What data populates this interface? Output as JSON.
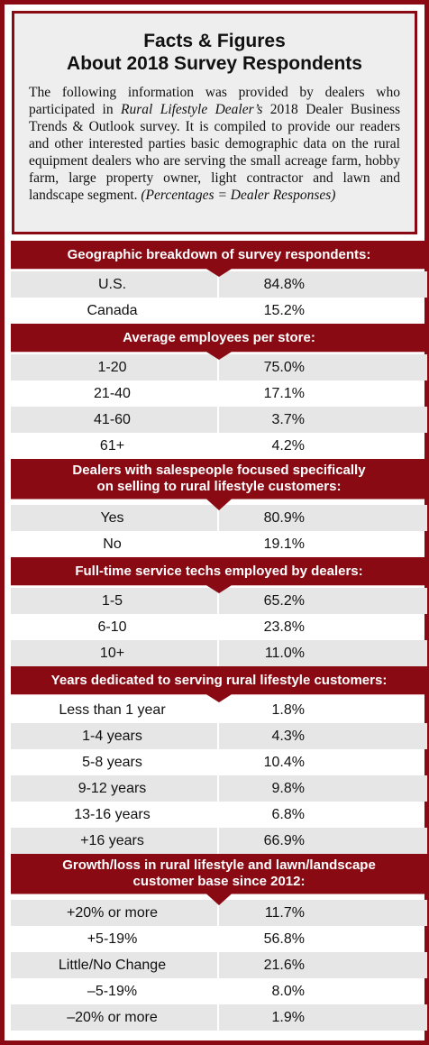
{
  "header": {
    "title_line1": "Facts & Figures",
    "title_line2": "About 2018 Survey Respondents",
    "intro_before": "The following information was provided by dealers who participated in ",
    "intro_italic": "Rural Lifestyle Dealer’s",
    "intro_after": " 2018 Dealer Business Trends & Outlook survey. It is compiled to provide our readers and other interested parties basic demographic data on the rural equipment dealers who are serving the small acreage farm, hobby farm, large property owner, light contractor and lawn and landscape segment.",
    "intro_note": "(Percentages = Dealer Responses)"
  },
  "sections": [
    {
      "title": "Geographic breakdown of survey respondents:",
      "rows": [
        {
          "label": "U.S.",
          "value": "84.8%"
        },
        {
          "label": "Canada",
          "value": "15.2%"
        }
      ]
    },
    {
      "title": "Average employees per store:",
      "rows": [
        {
          "label": "1-20",
          "value": "75.0%"
        },
        {
          "label": "21-40",
          "value": "17.1%"
        },
        {
          "label": "41-60",
          "value": "3.7%"
        },
        {
          "label": "61+",
          "value": "4.2%"
        }
      ]
    },
    {
      "title_line1": "Dealers with salespeople focused specifically",
      "title_line2": "on selling to rural lifestyle customers:",
      "rows": [
        {
          "label": "Yes",
          "value": "80.9%"
        },
        {
          "label": "No",
          "value": "19.1%"
        }
      ]
    },
    {
      "title": "Full-time service techs employed by dealers:",
      "rows": [
        {
          "label": "1-5",
          "value": "65.2%"
        },
        {
          "label": "6-10",
          "value": "23.8%"
        },
        {
          "label": "10+",
          "value": "11.0%"
        }
      ]
    },
    {
      "title": "Years dedicated to serving rural lifestyle customers:",
      "rows": [
        {
          "label": "Less than 1 year",
          "value": "1.8%"
        },
        {
          "label": "1-4 years",
          "value": "4.3%"
        },
        {
          "label": "5-8 years",
          "value": "10.4%"
        },
        {
          "label": "9-12 years",
          "value": "9.8%"
        },
        {
          "label": "13-16 years",
          "value": "6.8%"
        },
        {
          "label": "+16 years",
          "value": "66.9%"
        }
      ]
    },
    {
      "title_line1": "Growth/loss in rural lifestyle and lawn/landscape",
      "title_line2": "customer base since 2012:",
      "rows": [
        {
          "label": "+20% or more",
          "value": "11.7%"
        },
        {
          "label": "+5-19%",
          "value": "56.8%"
        },
        {
          "label": "Little/No Change",
          "value": "21.6%"
        },
        {
          "label": "–5-19%",
          "value": "8.0%"
        },
        {
          "label": "–20% or more",
          "value": "1.9%"
        }
      ]
    }
  ],
  "colors": {
    "accent": "#8a0a14",
    "row_alt": "#e6e6e6",
    "header_bg": "#eeeeee"
  }
}
